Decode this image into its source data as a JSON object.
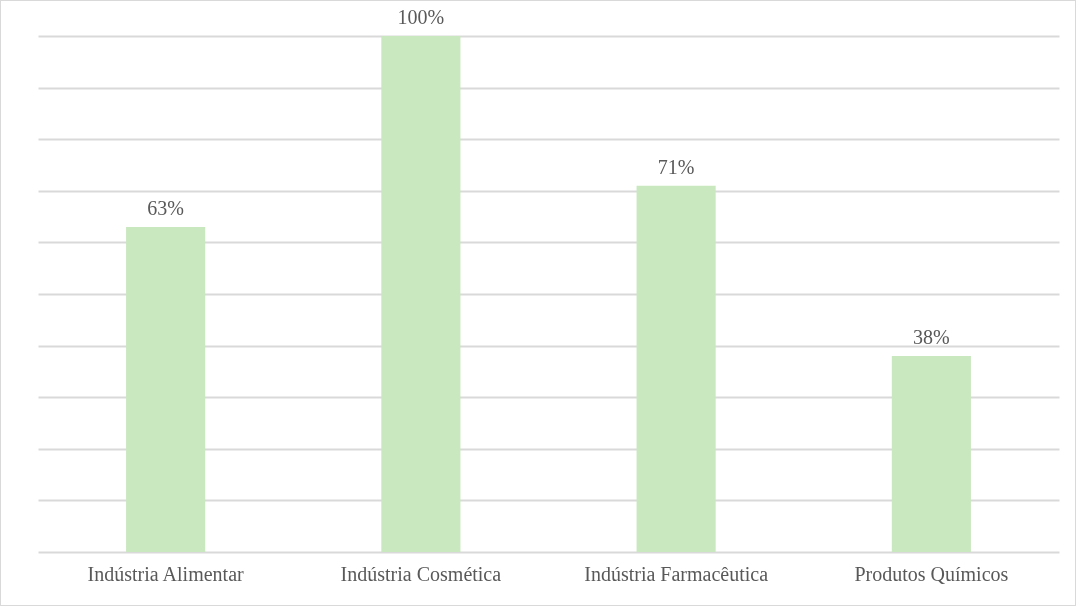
{
  "chart_data": {
    "type": "bar",
    "categories": [
      "Indústria Alimentar",
      "Indústria Cosmética",
      "Indústria Farmacêutica",
      "Produtos Químicos"
    ],
    "values": [
      63,
      100,
      71,
      38
    ],
    "value_labels": [
      "63%",
      "100%",
      "71%",
      "38%"
    ],
    "color": "#c9e8c0",
    "ylim": [
      0,
      100
    ],
    "yticks": [
      {
        "value": 0,
        "label": null
      },
      {
        "value": 10,
        "label": null
      },
      {
        "value": 20,
        "label": null
      },
      {
        "value": 30,
        "label": null
      },
      {
        "value": 40,
        "label": null
      },
      {
        "value": 50,
        "label": null
      },
      {
        "value": 60,
        "label": null
      },
      {
        "value": 70,
        "label": null
      },
      {
        "value": 80,
        "label": null
      },
      {
        "value": 90,
        "label": null
      },
      {
        "value": 100,
        "label": null
      }
    ],
    "grid": "y",
    "tick_labels": "x"
  }
}
